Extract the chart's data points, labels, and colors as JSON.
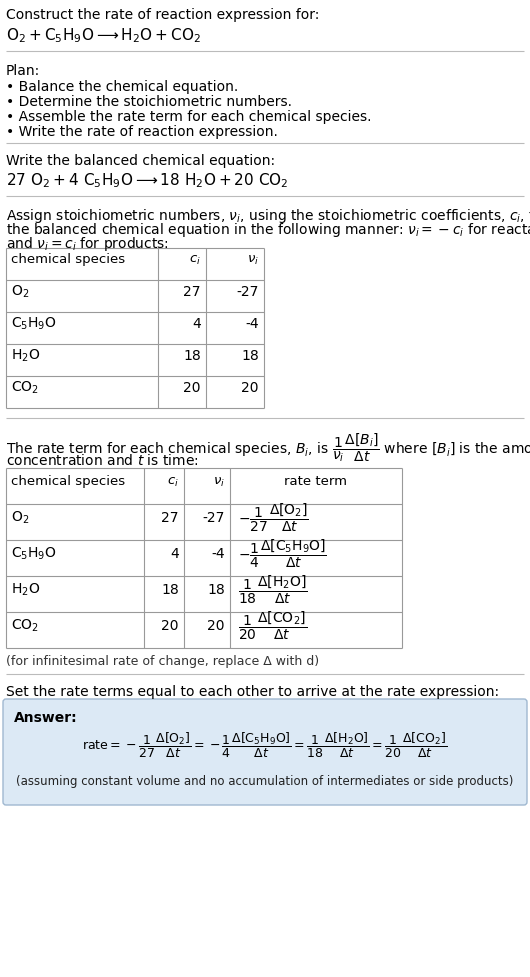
{
  "bg_color": "#ffffff",
  "answer_bg_color": "#dce9f5",
  "answer_border_color": "#a0b8d0",
  "sections": {
    "title": "Construct the rate of reaction expression for:",
    "plan_header": "Plan:",
    "plan_items": [
      "• Balance the chemical equation.",
      "• Determine the stoichiometric numbers.",
      "• Assemble the rate term for each chemical species.",
      "• Write the rate of reaction expression."
    ],
    "balanced_header": "Write the balanced chemical equation:",
    "stoich_para": "Assign stoichiometric numbers, {nu_i}, using the stoichiometric coefficients, {c_i}, from\nthe balanced chemical equation in the following manner: {nu_i} = −{c_i} for reactants\nand {nu_i} = {c_i} for products:",
    "rate_para_a": "The rate term for each chemical species, B{sub_i}, is",
    "rate_para_b": "where [B{sub_i}] is the amount",
    "rate_para_c": "concentration and t is time:",
    "infinitesimal_note": "(for infinitesimal rate of change, replace Δ with d)",
    "set_rate": "Set the rate terms equal to each other to arrive at the rate expression:",
    "answer_label": "Answer:",
    "footnote": "(assuming constant volume and no accumulation of intermediates or side products)"
  },
  "table1": {
    "headers": [
      "chemical species",
      "c_i",
      "nu_i"
    ],
    "rows": [
      [
        "O_2",
        "27",
        "-27"
      ],
      [
        "C_5H_9O",
        "4",
        "-4"
      ],
      [
        "H_2O",
        "18",
        "18"
      ],
      [
        "CO_2",
        "20",
        "20"
      ]
    ]
  },
  "table2": {
    "headers": [
      "chemical species",
      "c_i",
      "nu_i",
      "rate term"
    ],
    "rows": [
      [
        "O_2",
        "27",
        "-27",
        "rt_O2"
      ],
      [
        "C_5H_9O",
        "4",
        "-4",
        "rt_C5H9O"
      ],
      [
        "H_2O",
        "18",
        "18",
        "rt_H2O"
      ],
      [
        "CO_2",
        "20",
        "20",
        "rt_CO2"
      ]
    ]
  }
}
